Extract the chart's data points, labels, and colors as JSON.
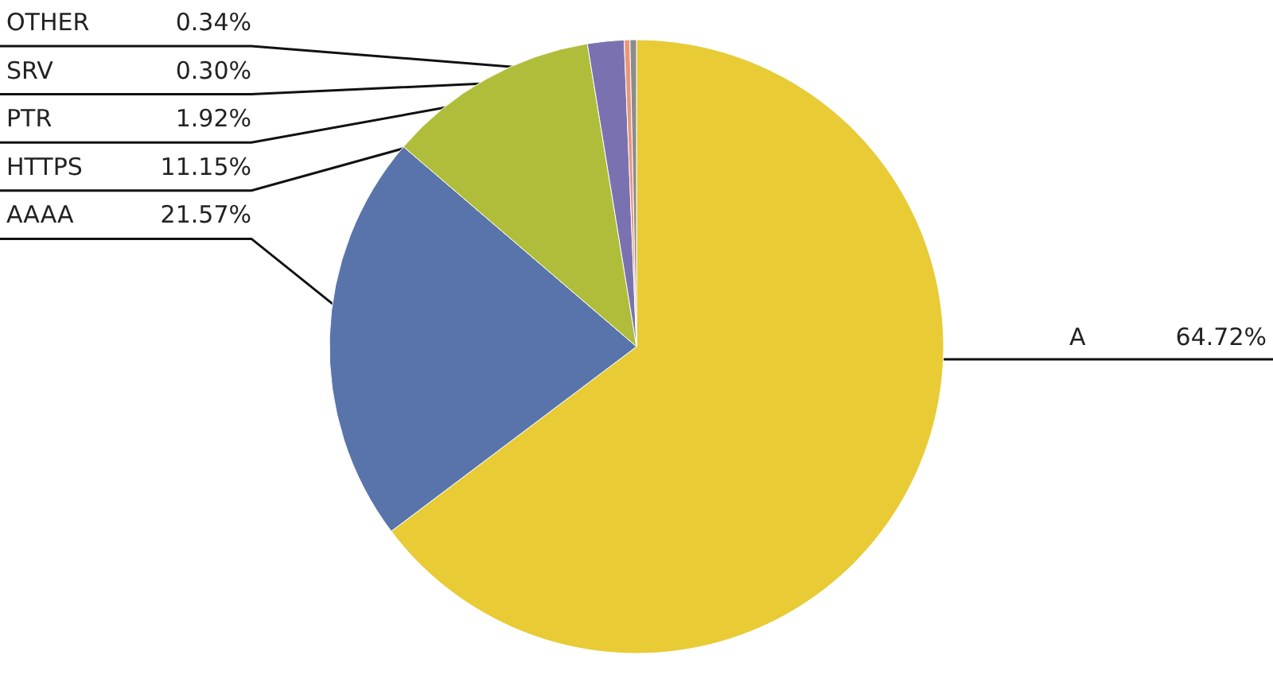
{
  "chart_data": {
    "type": "pie",
    "categories": [
      "A",
      "AAAA",
      "HTTPS",
      "PTR",
      "SRV",
      "OTHER"
    ],
    "values": [
      64.72,
      21.57,
      11.15,
      1.92,
      0.3,
      0.34
    ],
    "value_labels": [
      "64.72%",
      "21.57%",
      "11.15%",
      "1.92%",
      "0.30%",
      "0.34%"
    ],
    "colors": [
      "#e8cb35",
      "#5874ab",
      "#b0bd3a",
      "#7a72b0",
      "#e9967a",
      "#8c8c8c"
    ]
  }
}
